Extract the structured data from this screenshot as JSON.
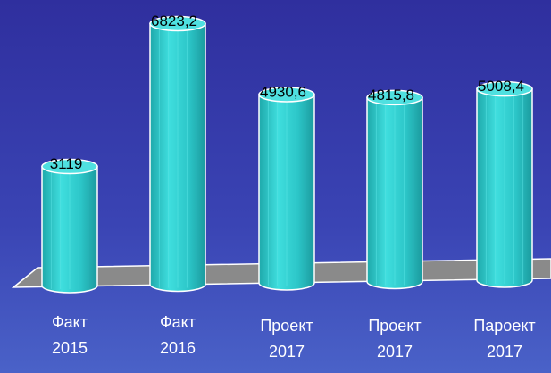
{
  "chart_data": {
    "type": "bar",
    "categories": [
      [
        "Факт",
        "2015"
      ],
      [
        "Факт",
        "2016"
      ],
      [
        "Проект",
        "2017"
      ],
      [
        "Проект",
        "2017"
      ],
      [
        "Пароект",
        "2017"
      ]
    ],
    "values": [
      3119,
      6823.2,
      4930.6,
      4815.8,
      5008.4
    ],
    "value_labels": [
      "3119",
      "6823,2",
      "4930,6",
      "4815,8",
      "5008,4"
    ],
    "color": "#2fc9c9"
  }
}
